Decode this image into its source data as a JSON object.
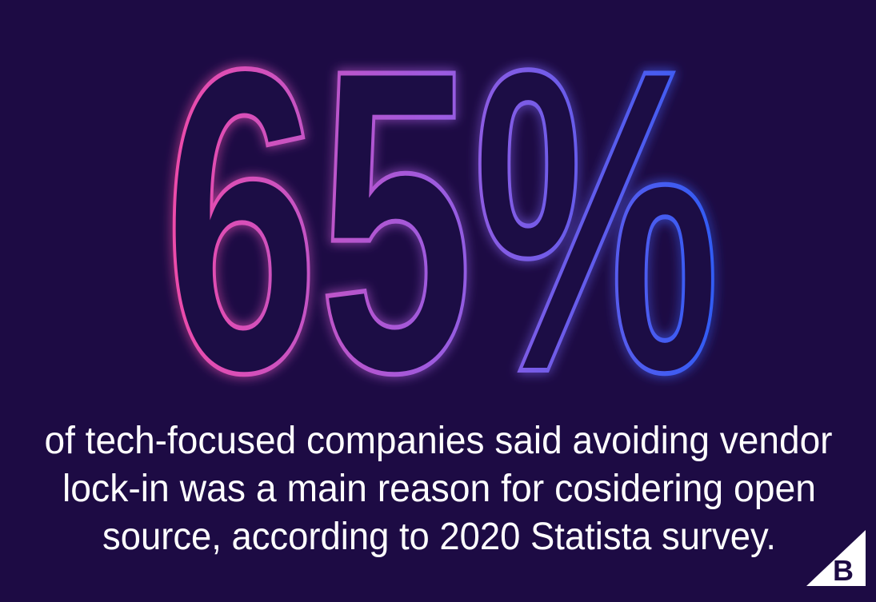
{
  "stat": "65%",
  "caption": [
    "of tech-focused companies said avoiding vendor",
    "lock-in was a main reason for cosidering open",
    "source, according to 2020 Statista survey."
  ],
  "logo": "B"
}
